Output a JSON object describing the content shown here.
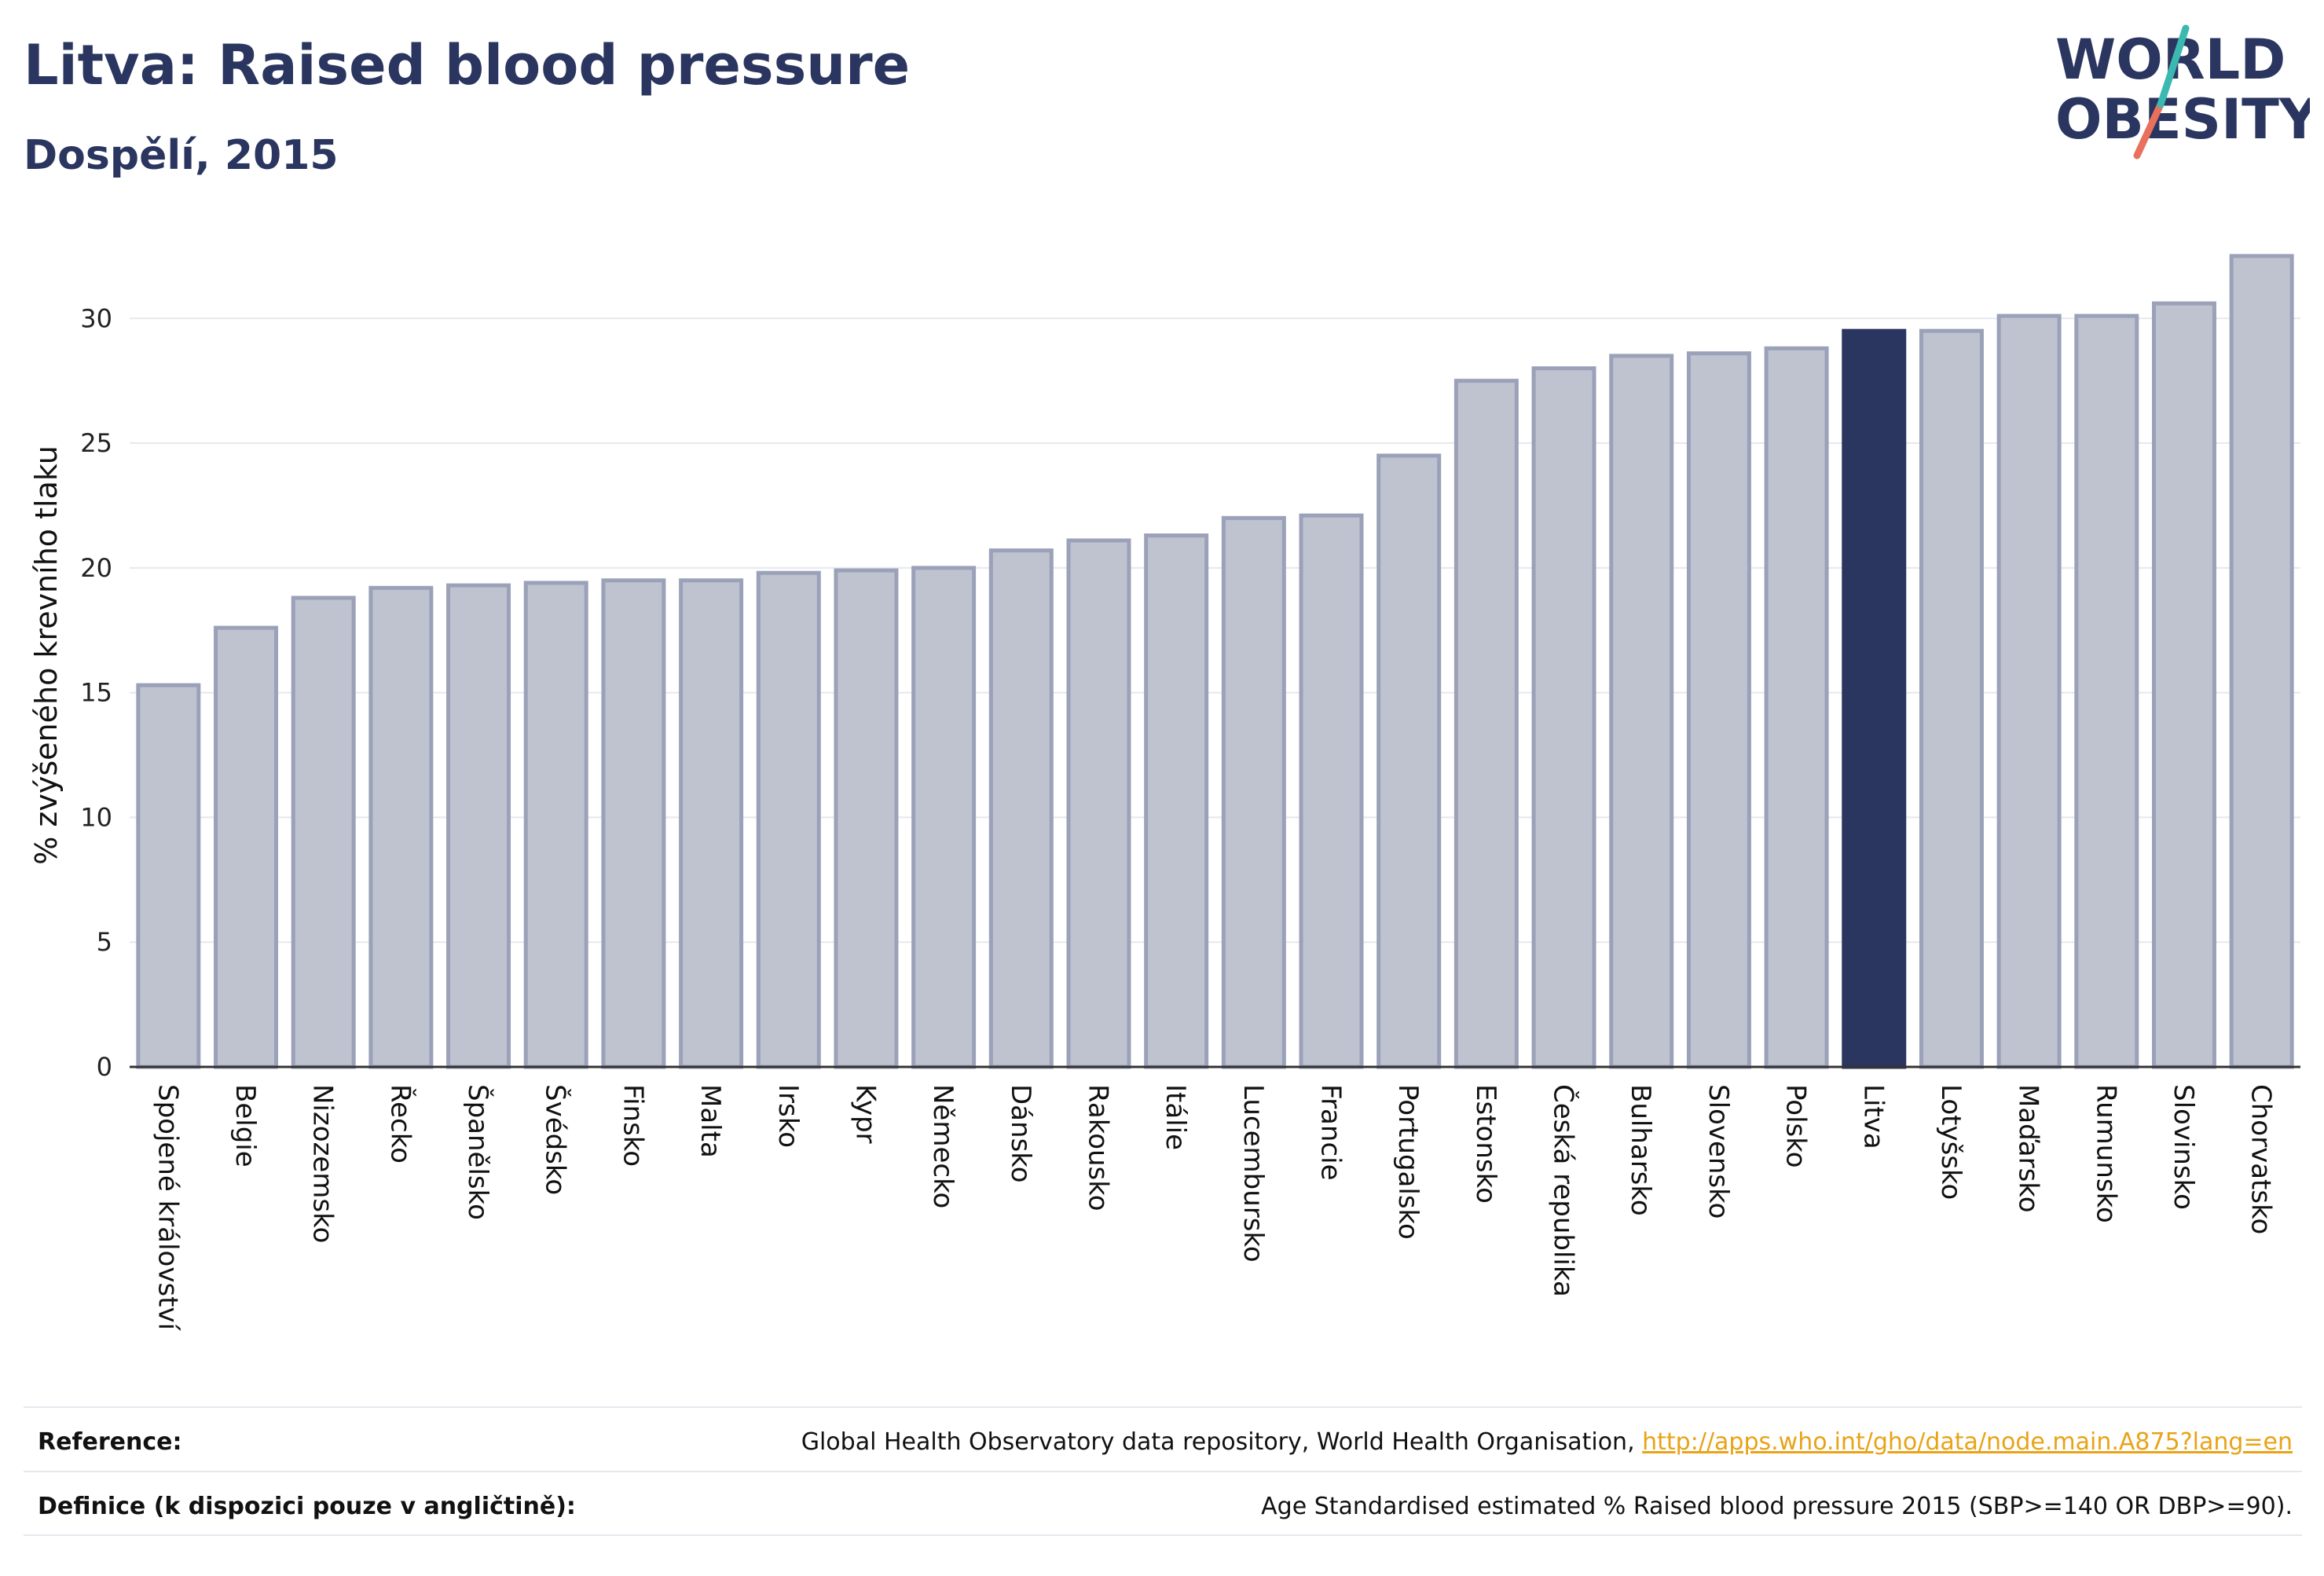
{
  "header": {
    "title": "Litva: Raised blood pressure",
    "subtitle": "Dospělí, 2015"
  },
  "logo": {
    "line1": "WORLD",
    "line2": "OBESITY"
  },
  "colors": {
    "highlight": "#2a3560",
    "bar_fill": "#bfc3d0",
    "bar_stroke": "#9aa1b8",
    "link": "#e8a317",
    "logo_teal": "#3bb8b0",
    "logo_coral": "#e8705c"
  },
  "chart_data": {
    "type": "bar",
    "ylabel": "% zvýšeného krevního tlaku",
    "ylim": [
      0,
      33
    ],
    "yticks": [
      0,
      5,
      10,
      15,
      20,
      25,
      30
    ],
    "grid": true,
    "highlight": "Litva",
    "categories": [
      "Spojené království",
      "Belgie",
      "Nizozemsko",
      "Řecko",
      "Španělsko",
      "Švédsko",
      "Finsko",
      "Malta",
      "Irsko",
      "Kypr",
      "Německo",
      "Dánsko",
      "Rakousko",
      "Itálie",
      "Lucembursko",
      "Francie",
      "Portugalsko",
      "Estonsko",
      "Česká republika",
      "Bulharsko",
      "Slovensko",
      "Polsko",
      "Litva",
      "Lotyšsko",
      "Maďarsko",
      "Rumunsko",
      "Slovinsko",
      "Chorvatsko"
    ],
    "values": [
      15.3,
      17.6,
      18.8,
      19.2,
      19.3,
      19.4,
      19.5,
      19.5,
      19.8,
      19.9,
      20.0,
      20.7,
      21.1,
      21.3,
      22.0,
      22.1,
      24.5,
      27.5,
      28.0,
      28.5,
      28.6,
      28.8,
      29.5,
      29.5,
      30.1,
      30.1,
      30.6,
      32.5
    ]
  },
  "footer": {
    "reference_label": "Reference:",
    "reference_text": "Global Health Observatory data repository, World Health Organisation, ",
    "reference_link": "http://apps.who.int/gho/data/node.main.A875?lang=en",
    "definition_label": "Definice (k dispozici pouze v angličtině):",
    "definition_text": "Age Standardised estimated % Raised blood pressure 2015 (SBP>=140 OR DBP>=90)."
  }
}
